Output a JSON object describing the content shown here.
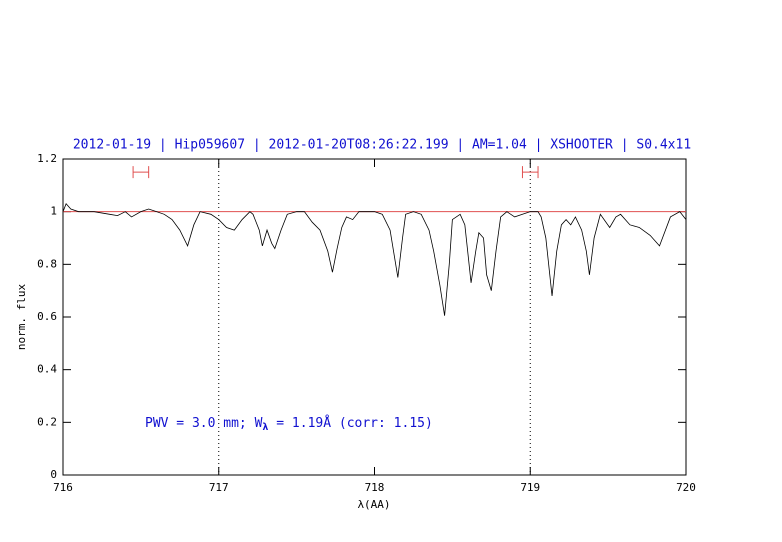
{
  "chart_data": {
    "type": "line",
    "title": "2012-01-19 | Hip059607 | 2012-01-20T08:26:22.199 | AM=1.04 | XSHOOTER | S0.4x11",
    "xlabel": "λ(AA)",
    "ylabel": "norm. flux",
    "annotation": [
      "PWV = 3.0 mm; W",
      "λ",
      " = 1.19Å (corr: 1.15)"
    ],
    "xlim": [
      716,
      720
    ],
    "xticks": [
      716,
      717,
      718,
      719,
      720
    ],
    "ylim": [
      0,
      1.2
    ],
    "yticks": [
      0,
      0.2,
      0.4,
      0.6,
      0.8,
      1,
      1.2
    ],
    "color": "#000000",
    "x": [
      716.0,
      716.02,
      716.05,
      716.1,
      716.2,
      716.3,
      716.35,
      716.4,
      716.44,
      716.5,
      716.55,
      716.6,
      716.65,
      716.7,
      716.75,
      716.8,
      716.84,
      716.88,
      716.95,
      717.0,
      717.05,
      717.1,
      717.15,
      717.2,
      717.22,
      717.26,
      717.28,
      717.31,
      717.34,
      717.36,
      717.4,
      717.44,
      717.5,
      717.55,
      717.6,
      717.65,
      717.7,
      717.73,
      717.76,
      717.79,
      717.82,
      717.86,
      717.9,
      718.0,
      718.05,
      718.1,
      718.15,
      718.18,
      718.2,
      718.25,
      718.3,
      718.35,
      718.38,
      718.42,
      718.45,
      718.48,
      718.5,
      718.55,
      718.58,
      718.62,
      718.65,
      718.67,
      718.7,
      718.72,
      718.75,
      718.78,
      718.81,
      718.85,
      718.9,
      718.95,
      719.0,
      719.05,
      719.07,
      719.1,
      719.14,
      719.17,
      719.2,
      719.23,
      719.26,
      719.29,
      719.33,
      719.36,
      719.38,
      719.41,
      719.45,
      719.51,
      719.55,
      719.58,
      719.64,
      719.7,
      719.77,
      719.83,
      719.9,
      719.96,
      720.0
    ],
    "values": [
      1.0,
      1.03,
      1.01,
      1.0,
      1.0,
      0.99,
      0.985,
      1.0,
      0.98,
      1.0,
      1.01,
      1.0,
      0.99,
      0.97,
      0.93,
      0.87,
      0.95,
      1.0,
      0.99,
      0.97,
      0.94,
      0.93,
      0.97,
      1.0,
      0.99,
      0.93,
      0.87,
      0.93,
      0.88,
      0.86,
      0.93,
      0.99,
      1.0,
      1.0,
      0.96,
      0.93,
      0.85,
      0.77,
      0.86,
      0.94,
      0.98,
      0.97,
      1.0,
      1.0,
      0.99,
      0.93,
      0.75,
      0.9,
      0.99,
      1.0,
      0.99,
      0.93,
      0.85,
      0.72,
      0.605,
      0.8,
      0.97,
      0.99,
      0.95,
      0.73,
      0.85,
      0.92,
      0.9,
      0.76,
      0.7,
      0.85,
      0.98,
      1.0,
      0.98,
      0.99,
      1.0,
      1.0,
      0.98,
      0.9,
      0.68,
      0.85,
      0.95,
      0.97,
      0.95,
      0.98,
      0.93,
      0.85,
      0.76,
      0.9,
      0.99,
      0.94,
      0.98,
      0.99,
      0.95,
      0.94,
      0.91,
      0.87,
      0.98,
      1.0,
      0.97
    ],
    "hline": {
      "value": 1,
      "color": "#e05050"
    },
    "vlines": [
      717,
      719
    ],
    "ranges": [
      {
        "x": [
          716.45,
          716.55
        ],
        "y": 1.15,
        "color": "#e05050"
      },
      {
        "x": [
          718.95,
          719.05
        ],
        "y": 1.15,
        "color": "#e05050"
      }
    ],
    "text_color": "#1010d0"
  }
}
